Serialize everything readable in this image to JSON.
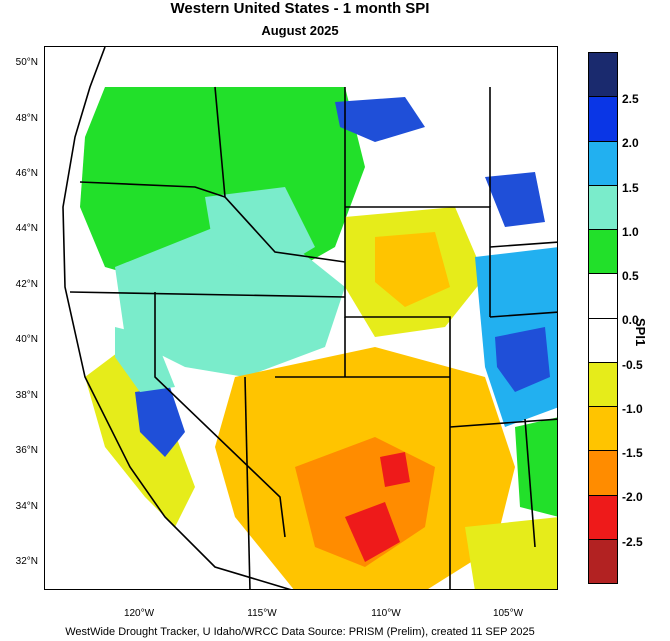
{
  "map": {
    "title": "Western United States - 1 month SPI",
    "subtitle": "August 2025",
    "footer": "WestWide Drought Tracker, U Idaho/WRCC Data Source: PRISM (Prelim), created 11 SEP 2025",
    "lat_labels": [
      "50°N",
      "48°N",
      "46°N",
      "44°N",
      "42°N",
      "40°N",
      "38°N",
      "36°N",
      "34°N",
      "32°N"
    ],
    "lon_labels": [
      "120°W",
      "115°W",
      "110°W",
      "105°W"
    ],
    "colorbar": {
      "title": "SPI1",
      "tick_labels": [
        "2.5",
        "2.0",
        "1.5",
        "1.0",
        "0.5",
        "0.0",
        "-0.5",
        "-1.0",
        "-1.5",
        "-2.0",
        "-2.5"
      ],
      "colors": [
        "#1a2a6e",
        "#0a36e6",
        "#22b0f0",
        "#7aeccb",
        "#22e02a",
        "#ffffff",
        "#ffffff",
        "#e6ec1a",
        "#ffc400",
        "#ff8c00",
        "#ee1a1a",
        "#b22222"
      ]
    },
    "field_colors": {
      "ocean": "#ffffff",
      "wet_strong": "#1f4fd8",
      "wet": "#22b0f0",
      "moist": "#7aeccb",
      "green": "#22e02a",
      "neutral": "#ffffff",
      "dry_yellow": "#e6ec1a",
      "dry_orange": "#ffc400",
      "very_dry": "#ff8c00",
      "extreme_dry": "#ee1a1a"
    }
  }
}
